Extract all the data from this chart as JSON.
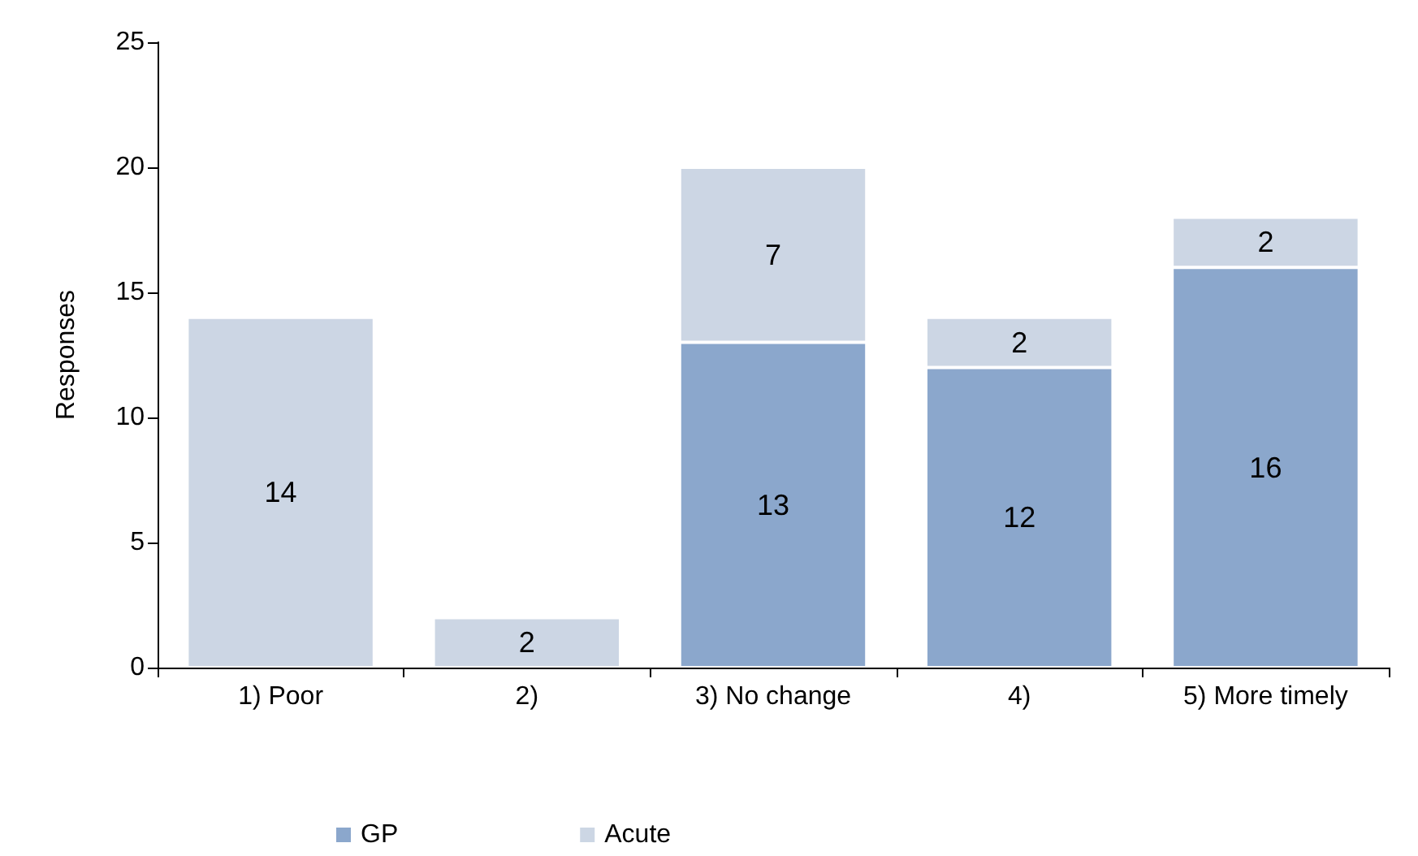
{
  "chart_data": {
    "type": "bar",
    "stacked": true,
    "ylabel": "Responses",
    "categories": [
      "1) Poor",
      "2)",
      "3) No change",
      "4)",
      "5) More timely"
    ],
    "series": [
      {
        "name": "GP",
        "color": "#8ba7cc",
        "values": [
          null,
          null,
          13,
          12,
          16
        ]
      },
      {
        "name": "Acute",
        "color": "#ccd6e4",
        "values": [
          14,
          2,
          7,
          2,
          2
        ]
      }
    ],
    "ylim": [
      0,
      25
    ],
    "yticks": [
      0,
      5,
      10,
      15,
      20,
      25
    ],
    "grid": false,
    "legend": "bottom",
    "data_labels": true
  }
}
